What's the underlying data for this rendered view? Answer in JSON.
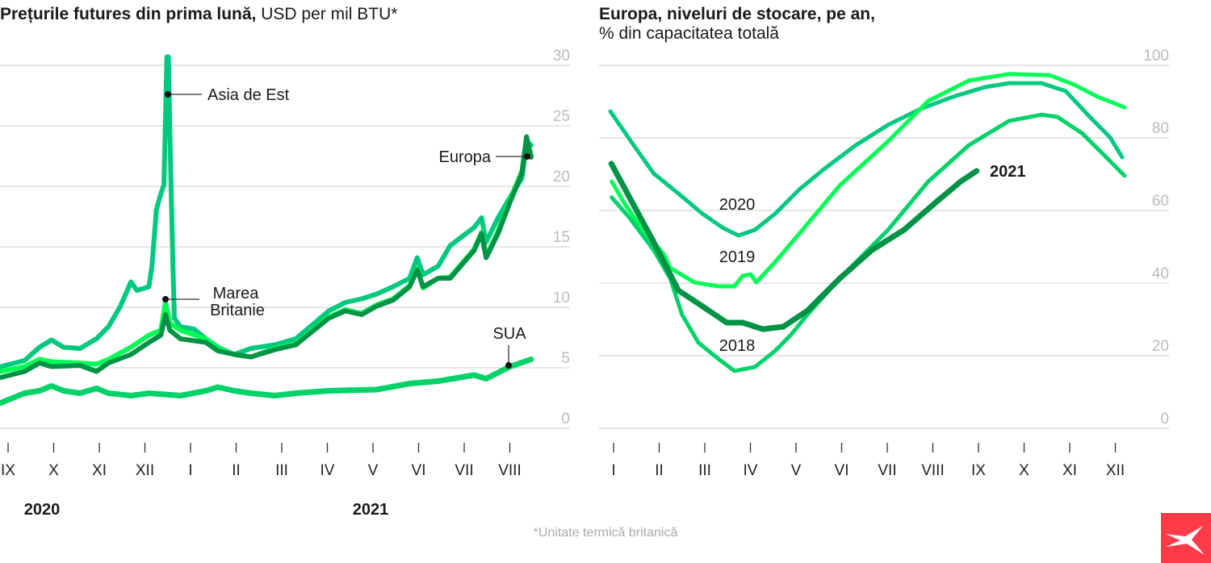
{
  "colors": {
    "asia_2020": "#00c97f",
    "uk_2019": "#00ff55",
    "europe_2021": "#009245",
    "usa_2018": "#00d26a",
    "grid": "#cccccc",
    "logo": "#ff3b4a"
  },
  "chart_data": [
    {
      "type": "line",
      "title_bold": "Prețurile futures din prima lună,",
      "title_rest": "USD per mil BTU*",
      "ylim": [
        0,
        30
      ],
      "yticks": [
        "0",
        "5",
        "10",
        "15",
        "20",
        "25",
        "30"
      ],
      "yaxis_position": "right",
      "grid": true,
      "x_tick_labels": [
        "IX",
        "X",
        "XI",
        "XII",
        "I",
        "II",
        "III",
        "IV",
        "V",
        "VI",
        "VII",
        "VIII"
      ],
      "x_tick_dates": [
        "2020-09-01",
        "2020-10-01",
        "2020-11-01",
        "2020-12-01",
        "2021-01-01",
        "2021-02-01",
        "2021-03-01",
        "2021-04-01",
        "2021-05-01",
        "2021-06-01",
        "2021-07-01",
        "2021-08-01"
      ],
      "year_labels": [
        "2020",
        "2021"
      ],
      "series": [
        {
          "name": "Asia de Est",
          "color": "#00c97f",
          "points": [
            [
              "2020-08-27",
              5.1
            ],
            [
              "2020-09-12",
              5.6
            ],
            [
              "2020-09-22",
              6.7
            ],
            [
              "2020-09-30",
              7.3
            ],
            [
              "2020-10-08",
              6.7
            ],
            [
              "2020-10-19",
              6.6
            ],
            [
              "2020-10-30",
              7.4
            ],
            [
              "2020-11-07",
              8.4
            ],
            [
              "2020-11-15",
              10.1
            ],
            [
              "2020-11-22",
              12.1
            ],
            [
              "2020-11-26",
              11.4
            ],
            [
              "2020-12-04",
              11.7
            ],
            [
              "2020-12-06",
              13.4
            ],
            [
              "2020-12-09",
              18.1
            ],
            [
              "2020-12-12",
              19.4
            ],
            [
              "2020-12-14",
              20.1
            ],
            [
              "2020-12-15",
              25.4
            ],
            [
              "2020-12-16",
              30.7
            ],
            [
              "2020-12-17",
              30.7
            ],
            [
              "2020-12-18",
              24.1
            ],
            [
              "2020-12-20",
              13.4
            ],
            [
              "2020-12-21",
              9.1
            ],
            [
              "2020-12-25",
              8.4
            ],
            [
              "2021-01-03",
              8.2
            ],
            [
              "2021-01-11",
              7.4
            ],
            [
              "2021-01-19",
              6.7
            ],
            [
              "2021-01-30",
              6.1
            ],
            [
              "2021-02-10",
              6.6
            ],
            [
              "2021-02-26",
              6.9
            ],
            [
              "2021-03-12",
              7.4
            ],
            [
              "2021-04-03",
              9.7
            ],
            [
              "2021-04-14",
              10.4
            ],
            [
              "2021-04-25",
              10.7
            ],
            [
              "2021-05-05",
              11.1
            ],
            [
              "2021-05-16",
              11.7
            ],
            [
              "2021-05-27",
              12.4
            ],
            [
              "2021-06-01",
              14.1
            ],
            [
              "2021-06-05",
              12.7
            ],
            [
              "2021-06-15",
              13.4
            ],
            [
              "2021-06-23",
              15.1
            ],
            [
              "2021-07-09",
              16.6
            ],
            [
              "2021-07-14",
              17.4
            ],
            [
              "2021-07-17",
              15.4
            ],
            [
              "2021-07-25",
              17.4
            ],
            [
              "2021-08-02",
              19.1
            ],
            [
              "2021-08-10",
              20.7
            ],
            [
              "2021-08-13",
              23.7
            ],
            [
              "2021-08-16",
              23.4
            ]
          ]
        },
        {
          "name": "Marea Britanie",
          "color": "#00ff55",
          "points": [
            [
              "2020-08-27",
              4.7
            ],
            [
              "2020-09-12",
              5.1
            ],
            [
              "2020-09-22",
              5.7
            ],
            [
              "2020-09-30",
              5.5
            ],
            [
              "2020-10-19",
              5.4
            ],
            [
              "2020-10-30",
              5.3
            ],
            [
              "2020-11-07",
              5.7
            ],
            [
              "2020-11-22",
              6.7
            ],
            [
              "2020-12-04",
              7.7
            ],
            [
              "2020-12-12",
              8.1
            ],
            [
              "2020-12-15",
              10.4
            ],
            [
              "2020-12-18",
              8.7
            ],
            [
              "2020-12-25",
              8.1
            ],
            [
              "2021-01-11",
              7.4
            ],
            [
              "2021-01-19",
              6.6
            ],
            [
              "2021-01-30",
              6.1
            ],
            [
              "2021-02-10",
              5.9
            ],
            [
              "2021-02-26",
              6.6
            ],
            [
              "2021-03-12",
              7.0
            ],
            [
              "2021-04-03",
              9.2
            ],
            [
              "2021-04-14",
              9.8
            ],
            [
              "2021-04-25",
              9.5
            ],
            [
              "2021-05-05",
              10.2
            ],
            [
              "2021-05-16",
              10.7
            ],
            [
              "2021-05-27",
              11.8
            ],
            [
              "2021-06-01",
              13.2
            ],
            [
              "2021-06-05",
              11.6
            ],
            [
              "2021-06-15",
              12.4
            ],
            [
              "2021-06-23",
              12.5
            ],
            [
              "2021-07-09",
              14.8
            ],
            [
              "2021-07-14",
              16.2
            ],
            [
              "2021-07-17",
              14.2
            ],
            [
              "2021-07-25",
              16.3
            ],
            [
              "2021-08-02",
              18.9
            ],
            [
              "2021-08-10",
              21.3
            ],
            [
              "2021-08-13",
              24.0
            ],
            [
              "2021-08-16",
              22.6
            ]
          ]
        },
        {
          "name": "Europa",
          "color": "#009245",
          "points": [
            [
              "2020-08-27",
              4.2
            ],
            [
              "2020-09-12",
              4.7
            ],
            [
              "2020-09-22",
              5.4
            ],
            [
              "2020-09-30",
              5.1
            ],
            [
              "2020-10-19",
              5.2
            ],
            [
              "2020-10-30",
              4.7
            ],
            [
              "2020-11-07",
              5.4
            ],
            [
              "2020-11-22",
              6.1
            ],
            [
              "2020-12-04",
              7.1
            ],
            [
              "2020-12-12",
              7.7
            ],
            [
              "2020-12-15",
              9.4
            ],
            [
              "2020-12-18",
              8.1
            ],
            [
              "2020-12-25",
              7.4
            ],
            [
              "2021-01-11",
              7.1
            ],
            [
              "2021-01-19",
              6.4
            ],
            [
              "2021-01-30",
              6.1
            ],
            [
              "2021-02-10",
              5.9
            ],
            [
              "2021-02-26",
              6.5
            ],
            [
              "2021-03-12",
              6.9
            ],
            [
              "2021-04-03",
              9.1
            ],
            [
              "2021-04-14",
              9.7
            ],
            [
              "2021-04-25",
              9.4
            ],
            [
              "2021-05-05",
              10.1
            ],
            [
              "2021-05-16",
              10.6
            ],
            [
              "2021-05-27",
              11.7
            ],
            [
              "2021-06-01",
              13.1
            ],
            [
              "2021-06-05",
              11.7
            ],
            [
              "2021-06-15",
              12.4
            ],
            [
              "2021-06-23",
              12.4
            ],
            [
              "2021-07-09",
              14.7
            ],
            [
              "2021-07-14",
              16.1
            ],
            [
              "2021-07-17",
              14.1
            ],
            [
              "2021-07-25",
              16.1
            ],
            [
              "2021-08-02",
              18.7
            ],
            [
              "2021-08-10",
              21.1
            ],
            [
              "2021-08-13",
              24.1
            ],
            [
              "2021-08-16",
              22.4
            ]
          ]
        },
        {
          "name": "SUA",
          "color": "#00d26a",
          "points": [
            [
              "2020-08-27",
              2.1
            ],
            [
              "2020-09-12",
              2.9
            ],
            [
              "2020-09-22",
              3.1
            ],
            [
              "2020-09-30",
              3.5
            ],
            [
              "2020-10-08",
              3.1
            ],
            [
              "2020-10-19",
              2.9
            ],
            [
              "2020-10-30",
              3.3
            ],
            [
              "2020-11-07",
              2.9
            ],
            [
              "2020-11-22",
              2.7
            ],
            [
              "2020-12-04",
              2.9
            ],
            [
              "2020-12-25",
              2.7
            ],
            [
              "2021-01-11",
              3.1
            ],
            [
              "2021-01-19",
              3.4
            ],
            [
              "2021-01-30",
              3.1
            ],
            [
              "2021-02-10",
              2.9
            ],
            [
              "2021-02-26",
              2.7
            ],
            [
              "2021-03-12",
              2.9
            ],
            [
              "2021-04-03",
              3.1
            ],
            [
              "2021-05-05",
              3.2
            ],
            [
              "2021-05-27",
              3.7
            ],
            [
              "2021-06-15",
              3.9
            ],
            [
              "2021-07-09",
              4.4
            ],
            [
              "2021-07-17",
              4.1
            ],
            [
              "2021-08-02",
              5.1
            ],
            [
              "2021-08-16",
              5.7
            ]
          ]
        }
      ]
    },
    {
      "type": "line",
      "title_bold": "Europa, niveluri de stocare, pe an,",
      "title_rest": "% din capacitatea totală",
      "ylim": [
        0,
        100
      ],
      "yticks": [
        "0",
        "20",
        "40",
        "60",
        "80",
        "100"
      ],
      "yaxis_position": "right",
      "grid": true,
      "x_tick_labels": [
        "I",
        "II",
        "III",
        "IV",
        "V",
        "VI",
        "VII",
        "VIII",
        "IX",
        "X",
        "XI",
        "XII"
      ],
      "series": [
        {
          "name": "2020",
          "color": "#00c97f",
          "points": [
            [
              0.93,
              87.3
            ],
            [
              1.44,
              78
            ],
            [
              1.88,
              70.2
            ],
            [
              2.42,
              64.7
            ],
            [
              2.95,
              59.1
            ],
            [
              3.39,
              55.3
            ],
            [
              3.74,
              53.1
            ],
            [
              4.1,
              54.7
            ],
            [
              4.54,
              59.1
            ],
            [
              5.07,
              65.8
            ],
            [
              5.6,
              71.3
            ],
            [
              6.31,
              78
            ],
            [
              7.02,
              83.6
            ],
            [
              7.73,
              88
            ],
            [
              8.43,
              91.3
            ],
            [
              9.14,
              94
            ],
            [
              9.67,
              95.1
            ],
            [
              10.38,
              95.1
            ],
            [
              10.91,
              92.9
            ],
            [
              11.44,
              85.8
            ],
            [
              11.88,
              80.2
            ],
            [
              12.15,
              74.7
            ]
          ]
        },
        {
          "name": "2019",
          "color": "#00ff55",
          "points": [
            [
              0.96,
              68
            ],
            [
              1.27,
              61.3
            ],
            [
              1.71,
              53.6
            ],
            [
              2.1,
              48
            ],
            [
              2.24,
              44.2
            ],
            [
              2.77,
              40.2
            ],
            [
              3.3,
              39.1
            ],
            [
              3.65,
              39.1
            ],
            [
              3.83,
              42
            ],
            [
              4.01,
              42.4
            ],
            [
              4.13,
              40.2
            ],
            [
              4.54,
              45.8
            ],
            [
              5.07,
              53.6
            ],
            [
              5.96,
              66.9
            ],
            [
              7.02,
              79.1
            ],
            [
              7.9,
              90.2
            ],
            [
              8.79,
              95.8
            ],
            [
              9.67,
              97.6
            ],
            [
              10.56,
              97.3
            ],
            [
              11.09,
              94.7
            ],
            [
              11.62,
              91.3
            ],
            [
              11.97,
              89.6
            ],
            [
              12.2,
              88.4
            ]
          ]
        },
        {
          "name": "2018",
          "color": "#00d26a",
          "points": [
            [
              0.96,
              63.6
            ],
            [
              1.35,
              58
            ],
            [
              1.88,
              49.1
            ],
            [
              2.24,
              41.3
            ],
            [
              2.5,
              31.3
            ],
            [
              2.86,
              23.6
            ],
            [
              3.3,
              19.1
            ],
            [
              3.65,
              15.8
            ],
            [
              4.1,
              16.9
            ],
            [
              4.54,
              21.3
            ],
            [
              4.89,
              25.8
            ],
            [
              5.25,
              31.3
            ],
            [
              5.96,
              41.3
            ],
            [
              7.02,
              54.7
            ],
            [
              7.9,
              68
            ],
            [
              8.79,
              78
            ],
            [
              9.67,
              84.7
            ],
            [
              10.38,
              86.4
            ],
            [
              10.73,
              85.8
            ],
            [
              11.27,
              81.3
            ],
            [
              11.8,
              74.7
            ],
            [
              12.2,
              69.6
            ]
          ]
        },
        {
          "name": "2021",
          "color": "#009245",
          "points": [
            [
              0.95,
              72.9
            ],
            [
              1.35,
              63.6
            ],
            [
              1.88,
              51.3
            ],
            [
              2.42,
              38
            ],
            [
              2.95,
              33.6
            ],
            [
              3.48,
              29.1
            ],
            [
              3.83,
              29.1
            ],
            [
              4.27,
              27.3
            ],
            [
              4.72,
              28
            ],
            [
              5.25,
              32.4
            ],
            [
              5.96,
              41.3
            ],
            [
              6.66,
              49.1
            ],
            [
              7.37,
              54.7
            ],
            [
              8.08,
              62.4
            ],
            [
              8.61,
              68
            ],
            [
              8.96,
              70.9
            ]
          ]
        }
      ]
    }
  ],
  "footnote": "*Unitate termică britanică",
  "logo_icon": "x-brand-logo"
}
